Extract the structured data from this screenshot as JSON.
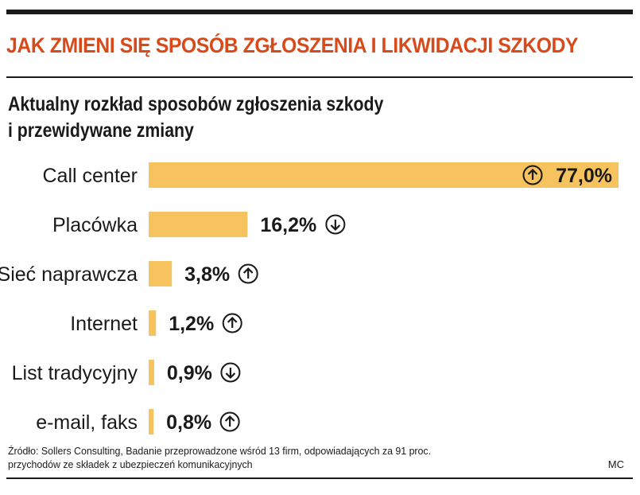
{
  "header": {
    "title": "JAK ZMIENI SIĘ SPOSÓB ZGŁOSZENIA I LIKWIDACJI SZKODY",
    "subtitle_line1": "Aktualny rozkład sposobów zgłoszenia szkody",
    "subtitle_line2": "i przewidywane zmiany"
  },
  "colors": {
    "title": "#d94a1a",
    "bar": "#f7c35f",
    "text": "#1a1a1a",
    "rule": "#1a1a1a"
  },
  "chart_data": {
    "type": "bar",
    "orientation": "horizontal",
    "categories": [
      "Call center",
      "Placówka",
      "Sieć naprawcza",
      "Internet",
      "List tradycyjny",
      "e-mail, faks"
    ],
    "values": [
      77.0,
      16.2,
      3.8,
      1.2,
      0.9,
      0.8
    ],
    "value_labels": [
      "77,0%",
      "16,2%",
      "3,8%",
      "1,2%",
      "0,9%",
      "0,8%"
    ],
    "trend": [
      "up",
      "down",
      "up",
      "up",
      "down",
      "up"
    ],
    "trend_icons": [
      "arrow-up-circle-icon",
      "arrow-down-circle-icon",
      "arrow-up-circle-icon",
      "arrow-up-circle-icon",
      "arrow-down-circle-icon",
      "arrow-up-circle-icon"
    ],
    "xlim": [
      0,
      77
    ],
    "grid": false,
    "legend": "none"
  },
  "footer": {
    "source_line1": "Źródło: Sollers Consulting, Badanie przeprowadzone wśród 13 firm, odpowiadających za 91 proc.",
    "source_line2": "przychodów ze składek z ubezpieczeń komunikacyjnych",
    "credit": "MC"
  }
}
